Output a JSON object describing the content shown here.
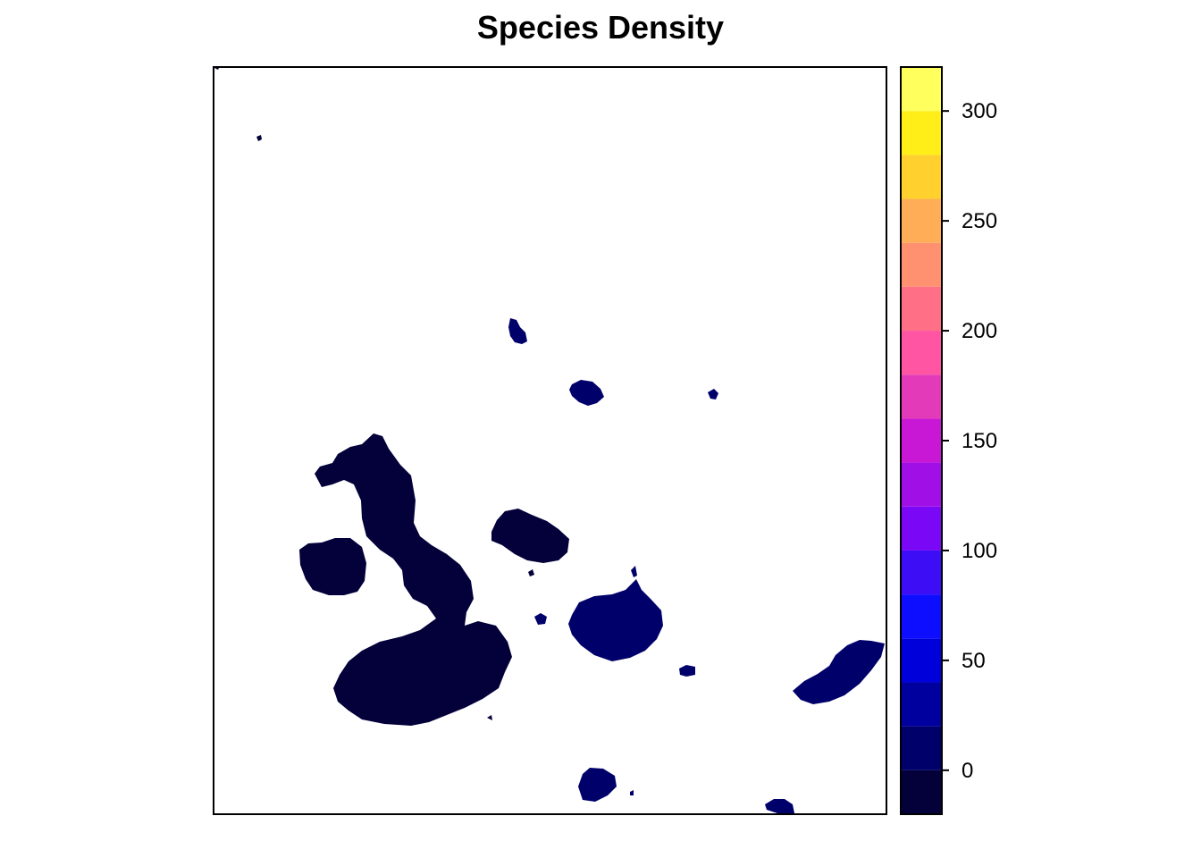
{
  "title": "Species Density",
  "legend": {
    "type": "continuous color scale",
    "range": [
      -20,
      320
    ],
    "breaks": [
      -20,
      0,
      20,
      40,
      60,
      80,
      100,
      120,
      140,
      160,
      180,
      200,
      220,
      240,
      260,
      280,
      300,
      320
    ],
    "colors": [
      "#03003A",
      "#00006B",
      "#00009F",
      "#0000DB",
      "#0D0DFF",
      "#3D0EF5",
      "#7A08F6",
      "#A10FE7",
      "#C817D5",
      "#E23AB9",
      "#FF55A3",
      "#FF7087",
      "#FF9170",
      "#FFAE57",
      "#FFD02E",
      "#FFEE18",
      "#FFFF5E"
    ],
    "tick_labels": [
      {
        "value": 0,
        "label": "0"
      },
      {
        "value": 50,
        "label": "50"
      },
      {
        "value": 100,
        "label": "100"
      },
      {
        "value": 150,
        "label": "150"
      },
      {
        "value": 200,
        "label": "200"
      },
      {
        "value": 250,
        "label": "250"
      },
      {
        "value": 300,
        "label": "300"
      }
    ]
  },
  "map": {
    "background": "#FFFFFF",
    "island_colors": {
      "very_low": "#03003A",
      "low": "#00006B"
    }
  }
}
